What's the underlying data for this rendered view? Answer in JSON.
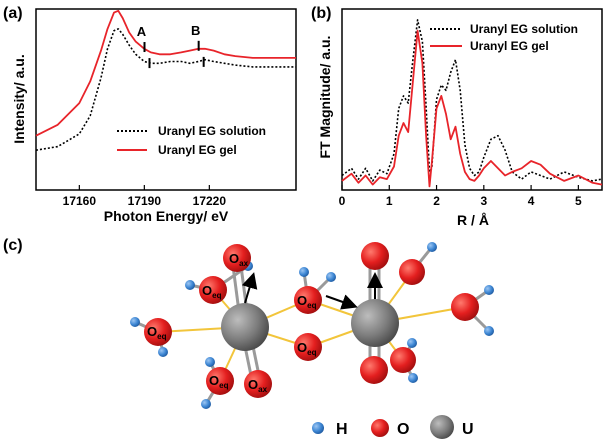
{
  "panels": {
    "a": {
      "label": "(a)",
      "ylabel": "Intensity/ a.u.",
      "xlabel": "Photon Energy/ eV",
      "annotations": [
        "A",
        "B"
      ],
      "legend": [
        "Uranyl EG solution",
        "Uranyl EG gel"
      ]
    },
    "b": {
      "label": "(b)",
      "ylabel": "FT Magnitude/ a.u.",
      "xlabel": "R / Å",
      "legend": [
        "Uranyl EG solution",
        "Uranyl EG gel"
      ]
    },
    "c": {
      "label": "(c)",
      "atom_labels": {
        "oax": "O",
        "oax_sub": "ax",
        "oeq": "O",
        "oeq_sub": "eq"
      },
      "key": [
        "H",
        "O",
        "U"
      ]
    }
  },
  "colors": {
    "solution": "#000000",
    "gel": "#e8242a",
    "oxygen": "#e41f1f",
    "hydrogen": "#3d86d3",
    "uranium": "#7c7c7c",
    "bond": "#f2c53b"
  },
  "chart_data": [
    {
      "type": "line",
      "title": "",
      "xlabel": "Photon Energy/ eV",
      "ylabel": "Intensity/ a.u.",
      "xlim": [
        17140,
        17260
      ],
      "xticks": [
        17160,
        17190,
        17220
      ],
      "yticks": "none",
      "series": [
        {
          "name": "Uranyl EG solution",
          "style": "dotted",
          "x": [
            17140,
            17150,
            17160,
            17165,
            17170,
            17173,
            17176,
            17178,
            17180,
            17183,
            17186,
            17190,
            17193,
            17197,
            17202,
            17207,
            17211,
            17215,
            17218,
            17222,
            17227,
            17232,
            17240,
            17250,
            17260
          ],
          "y": [
            0.22,
            0.24,
            0.31,
            0.41,
            0.62,
            0.78,
            0.88,
            0.89,
            0.86,
            0.8,
            0.75,
            0.71,
            0.7,
            0.7,
            0.71,
            0.71,
            0.7,
            0.71,
            0.72,
            0.71,
            0.7,
            0.69,
            0.68,
            0.68,
            0.68
          ]
        },
        {
          "name": "Uranyl EG gel",
          "style": "solid",
          "x": [
            17140,
            17150,
            17160,
            17165,
            17170,
            17173,
            17176,
            17178,
            17180,
            17183,
            17186,
            17190,
            17193,
            17197,
            17202,
            17207,
            17211,
            17215,
            17218,
            17222,
            17227,
            17232,
            17240,
            17250,
            17260
          ],
          "y": [
            0.3,
            0.36,
            0.48,
            0.6,
            0.77,
            0.89,
            0.98,
            0.99,
            0.95,
            0.87,
            0.82,
            0.78,
            0.76,
            0.75,
            0.75,
            0.76,
            0.77,
            0.78,
            0.78,
            0.77,
            0.75,
            0.74,
            0.73,
            0.73,
            0.73
          ]
        }
      ],
      "markers": [
        {
          "label": "A",
          "x": 17191
        },
        {
          "label": "B",
          "x": 17216
        }
      ]
    },
    {
      "type": "line",
      "title": "",
      "xlabel": "R / Å",
      "ylabel": "FT Magnitude/ a.u.",
      "xlim": [
        0,
        5.5
      ],
      "xticks": [
        0,
        1,
        2,
        3,
        4,
        5
      ],
      "yticks": "none",
      "series": [
        {
          "name": "Uranyl EG solution",
          "style": "dotted",
          "x": [
            0,
            0.2,
            0.35,
            0.5,
            0.65,
            0.8,
            0.95,
            1.1,
            1.2,
            1.3,
            1.4,
            1.5,
            1.6,
            1.7,
            1.78,
            1.85,
            1.9,
            2.0,
            2.1,
            2.2,
            2.3,
            2.4,
            2.5,
            2.6,
            2.7,
            2.8,
            2.9,
            3.0,
            3.15,
            3.3,
            3.45,
            3.6,
            3.8,
            4.0,
            4.2,
            4.4,
            4.7,
            5.0,
            5.3,
            5.5
          ],
          "y": [
            0.08,
            0.12,
            0.06,
            0.12,
            0.05,
            0.11,
            0.09,
            0.2,
            0.45,
            0.52,
            0.48,
            0.72,
            0.94,
            0.82,
            0.46,
            0.1,
            0.12,
            0.5,
            0.58,
            0.55,
            0.65,
            0.72,
            0.55,
            0.25,
            0.12,
            0.08,
            0.1,
            0.18,
            0.28,
            0.3,
            0.22,
            0.1,
            0.06,
            0.1,
            0.08,
            0.06,
            0.1,
            0.07,
            0.05,
            0.06
          ]
        },
        {
          "name": "Uranyl EG gel",
          "style": "solid",
          "x": [
            0,
            0.2,
            0.35,
            0.5,
            0.65,
            0.8,
            0.95,
            1.1,
            1.2,
            1.3,
            1.4,
            1.5,
            1.6,
            1.7,
            1.78,
            1.85,
            1.9,
            2.0,
            2.1,
            2.2,
            2.3,
            2.4,
            2.5,
            2.6,
            2.7,
            2.8,
            2.9,
            3.0,
            3.15,
            3.3,
            3.45,
            3.6,
            3.8,
            4.0,
            4.2,
            4.4,
            4.7,
            5.0,
            5.3,
            5.5
          ],
          "y": [
            0.05,
            0.09,
            0.04,
            0.08,
            0.03,
            0.07,
            0.06,
            0.13,
            0.3,
            0.37,
            0.32,
            0.6,
            0.88,
            0.7,
            0.3,
            0.02,
            0.15,
            0.45,
            0.52,
            0.42,
            0.28,
            0.35,
            0.2,
            0.1,
            0.06,
            0.05,
            0.08,
            0.12,
            0.16,
            0.12,
            0.08,
            0.1,
            0.12,
            0.16,
            0.14,
            0.09,
            0.05,
            0.08,
            0.04,
            0.03
          ]
        }
      ]
    }
  ]
}
